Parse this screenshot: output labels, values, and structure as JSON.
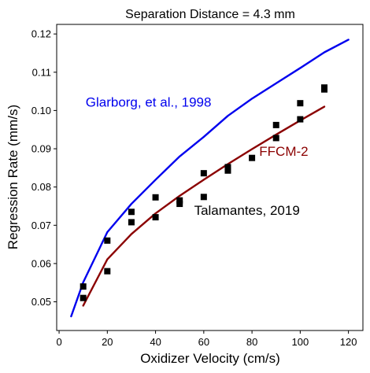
{
  "chart_data": {
    "type": "line",
    "title": "Separation Distance = 4.3 mm",
    "xlabel": "Oxidizer Velocity (cm/s)",
    "ylabel": "Regression Rate (mm/s)",
    "xlim": [
      -1,
      126
    ],
    "ylim": [
      0.0425,
      0.1225
    ],
    "xticks": [
      0,
      20,
      40,
      60,
      80,
      100,
      120
    ],
    "yticks": [
      0.05,
      0.06,
      0.07,
      0.08,
      0.09,
      0.1,
      0.11,
      0.12
    ],
    "grid": false,
    "legend": "none",
    "series": [
      {
        "kind": "line",
        "color": "#0000ee",
        "x": [
          5,
          10,
          20,
          30,
          40,
          50,
          60,
          70,
          80,
          90,
          100,
          110,
          120
        ],
        "y": [
          0.0462,
          0.0551,
          0.0682,
          0.0756,
          0.0819,
          0.088,
          0.0931,
          0.0986,
          0.1031,
          0.1071,
          0.1111,
          0.1152,
          0.1185
        ]
      },
      {
        "kind": "line",
        "color": "#8b0000",
        "x": [
          10,
          20,
          30,
          40,
          50,
          60,
          70,
          80,
          90,
          100,
          110
        ],
        "y": [
          0.049,
          0.0611,
          0.0677,
          0.0731,
          0.0777,
          0.0819,
          0.086,
          0.0899,
          0.0937,
          0.0974,
          0.101
        ]
      },
      {
        "kind": "scatter",
        "color": "#000000",
        "marker": "square",
        "x": [
          10,
          10,
          20,
          20,
          30,
          30,
          40,
          40,
          50,
          50,
          60,
          60,
          70,
          70,
          80,
          90,
          90,
          100,
          100,
          110,
          110
        ],
        "y": [
          0.054,
          0.051,
          0.066,
          0.058,
          0.0735,
          0.0708,
          0.0773,
          0.0721,
          0.0765,
          0.0756,
          0.0836,
          0.0774,
          0.0852,
          0.0843,
          0.0876,
          0.0962,
          0.0928,
          0.1019,
          0.0977,
          0.106,
          0.1055
        ]
      }
    ],
    "annotations": [
      {
        "text": "Glarborg, et al., 1998",
        "color": "#0000ee",
        "x": 11,
        "y": 0.101
      },
      {
        "text": "FFCM-2",
        "color": "#8b0000",
        "x": 83,
        "y": 0.0882
      },
      {
        "text": "Talamantes, 2019",
        "color": "#000000",
        "x": 56,
        "y": 0.0727
      }
    ]
  }
}
